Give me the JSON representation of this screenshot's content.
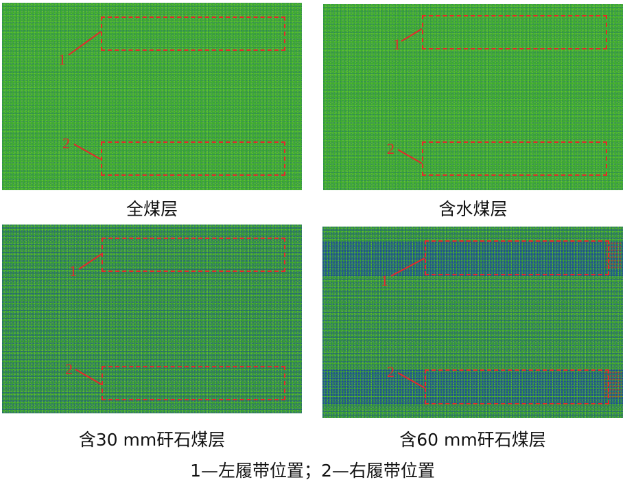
{
  "panels": [
    {
      "caption": "全煤层",
      "box1_label": "1",
      "box2_label": "2"
    },
    {
      "caption": "含水煤层",
      "box1_label": "1",
      "box2_label": "2"
    },
    {
      "caption": "含30 mm矸石煤层",
      "box1_label": "1",
      "box2_label": "2"
    },
    {
      "caption": "含60 mm矸石煤层",
      "box1_label": "1",
      "box2_label": "2"
    }
  ],
  "legend": "1—左履带位置；2—右履带位置",
  "colors": {
    "field_green": "#3fae2c",
    "speckle_blue": "#1e50a0",
    "annotation_red": "#e8262b"
  }
}
